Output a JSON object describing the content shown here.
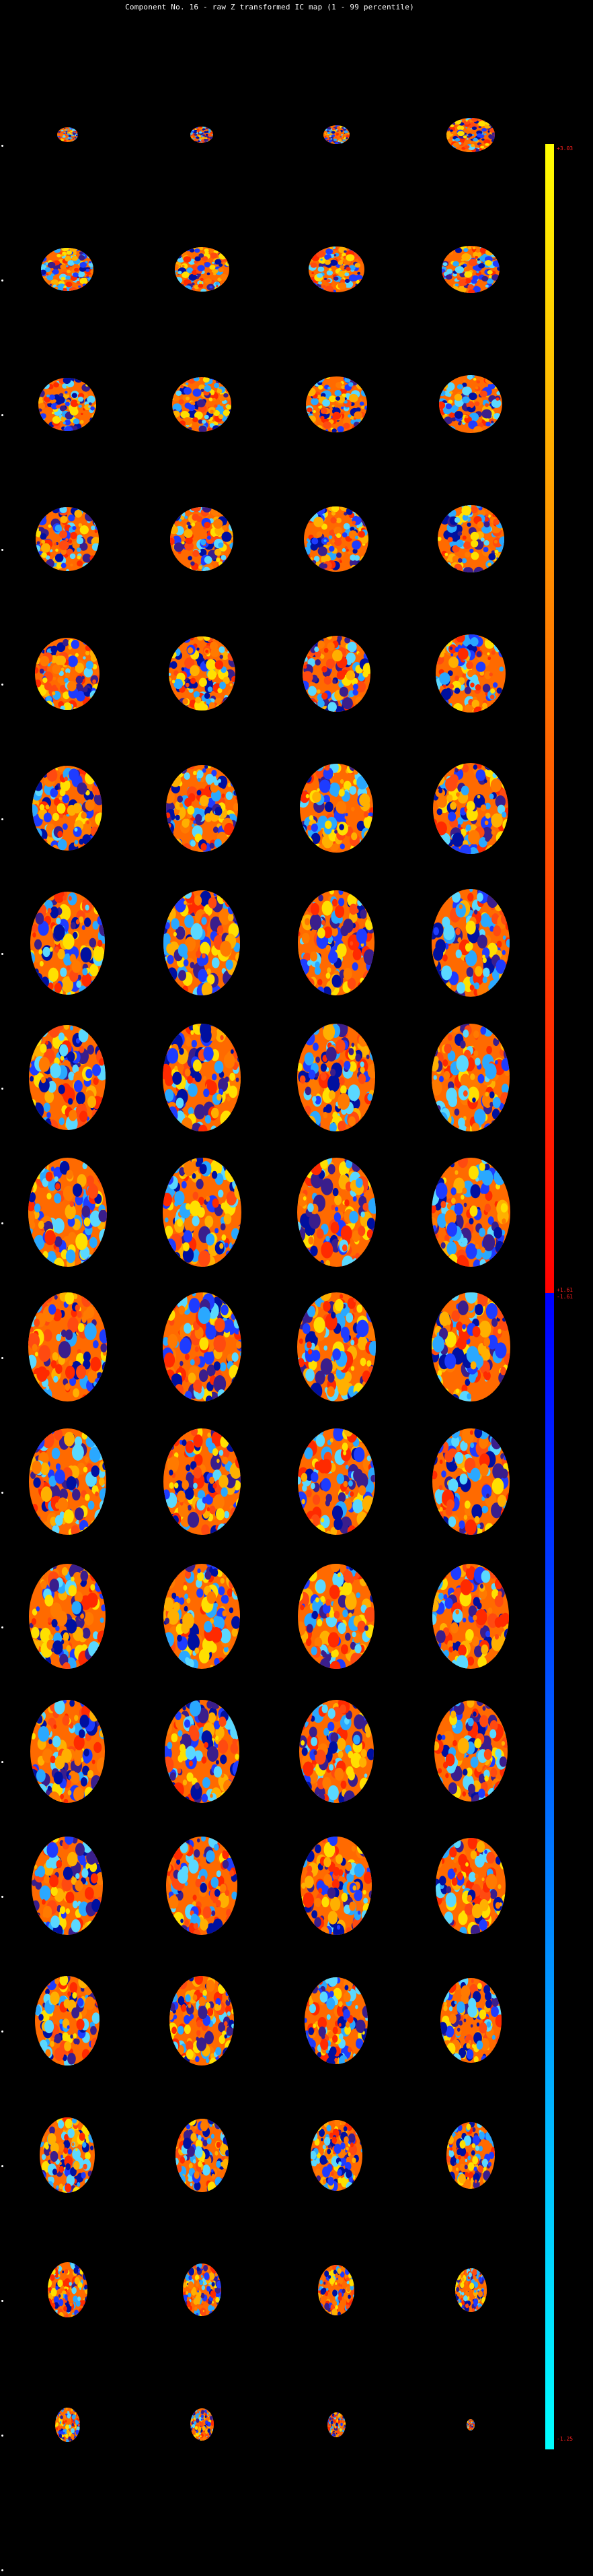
{
  "figure": {
    "title": "Component No. 16 - raw Z transformed IC map (1 - 99 percentile)"
  },
  "montage": {
    "rows": 18,
    "columns": 4,
    "slice_type": "axial brain slice",
    "colormap": "red-yellow positive / blue-cyan negative",
    "slice_extent": [
      [
        0.24,
        0.26,
        0.3,
        0.55
      ],
      [
        0.6,
        0.62,
        0.64,
        0.66
      ],
      [
        0.66,
        0.68,
        0.7,
        0.72
      ],
      [
        0.72,
        0.72,
        0.74,
        0.76
      ],
      [
        0.74,
        0.76,
        0.78,
        0.8
      ],
      [
        0.8,
        0.82,
        0.84,
        0.86
      ],
      [
        0.9,
        0.92,
        0.92,
        0.94
      ],
      [
        0.92,
        0.94,
        0.94,
        0.94
      ],
      [
        0.95,
        0.95,
        0.95,
        0.95
      ],
      [
        0.95,
        0.95,
        0.95,
        0.95
      ],
      [
        0.93,
        0.93,
        0.93,
        0.93
      ],
      [
        0.92,
        0.92,
        0.92,
        0.92
      ],
      [
        0.9,
        0.9,
        0.9,
        0.88
      ],
      [
        0.86,
        0.86,
        0.86,
        0.84
      ],
      [
        0.78,
        0.78,
        0.76,
        0.74
      ],
      [
        0.66,
        0.64,
        0.62,
        0.58
      ],
      [
        0.48,
        0.46,
        0.44,
        0.38
      ],
      [
        0.3,
        0.28,
        0.22,
        0.1
      ]
    ]
  },
  "colorbar": {
    "top_label": "+3.03",
    "mid_label_upper": "+1.61",
    "mid_label_lower": "-1.61",
    "bottom_label": "-1.25",
    "positive_colors": [
      "#ffff00",
      "#ff0000"
    ],
    "negative_colors": [
      "#0000ff",
      "#00ffff"
    ]
  }
}
